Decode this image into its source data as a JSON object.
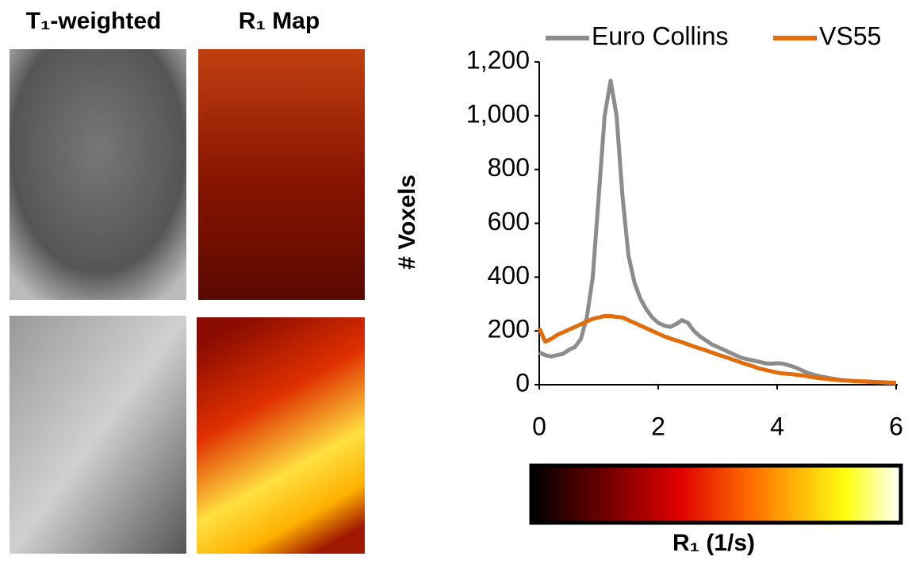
{
  "panels": {
    "t1_label": "T₁-weighted",
    "r1_label": "R₁ Map"
  },
  "chart_data": {
    "type": "line",
    "xlabel": "R₁ (1/s)",
    "ylabel": "# Voxels",
    "x": [
      0,
      0.1,
      0.2,
      0.3,
      0.4,
      0.5,
      0.6,
      0.7,
      0.8,
      0.9,
      1,
      1.1,
      1.2,
      1.3,
      1.4,
      1.5,
      1.6,
      1.7,
      1.8,
      1.9,
      2,
      2.1,
      2.2,
      2.3,
      2.4,
      2.5,
      2.6,
      2.7,
      2.8,
      2.9,
      3,
      3.1,
      3.2,
      3.3,
      3.4,
      3.5,
      3.6,
      3.7,
      3.8,
      3.9,
      4,
      4.1,
      4.2,
      4.3,
      4.4,
      4.5,
      4.6,
      4.7,
      4.8,
      4.9,
      5,
      5.1,
      5.2,
      5.3,
      5.4,
      5.5,
      5.6,
      5.7,
      5.8,
      5.9,
      6
    ],
    "series": [
      {
        "name": "Euro Collins",
        "color": "#8c8c8c",
        "values": [
          120,
          110,
          105,
          110,
          115,
          130,
          140,
          170,
          250,
          400,
          700,
          1000,
          1130,
          1000,
          700,
          480,
          380,
          320,
          280,
          250,
          230,
          220,
          215,
          225,
          240,
          230,
          200,
          180,
          165,
          150,
          140,
          130,
          120,
          110,
          100,
          95,
          90,
          85,
          80,
          78,
          80,
          78,
          72,
          65,
          55,
          45,
          38,
          32,
          28,
          24,
          20,
          17,
          15,
          13,
          12,
          11,
          10,
          9,
          8,
          7,
          6
        ]
      },
      {
        "name": "VS55",
        "color": "#e36c0a",
        "values": [
          210,
          160,
          170,
          185,
          195,
          205,
          215,
          225,
          235,
          245,
          250,
          255,
          255,
          252,
          250,
          240,
          230,
          220,
          210,
          200,
          190,
          180,
          172,
          165,
          158,
          150,
          142,
          135,
          128,
          120,
          112,
          105,
          98,
          90,
          82,
          75,
          68,
          60,
          55,
          50,
          45,
          42,
          40,
          38,
          35,
          32,
          28,
          25,
          22,
          20,
          18,
          16,
          15,
          14,
          13,
          12,
          11,
          10,
          9,
          8,
          7
        ]
      }
    ],
    "xlim": [
      0,
      6
    ],
    "xticks": [
      0,
      2,
      4,
      6
    ],
    "ylim": [
      0,
      1200
    ],
    "yticks": [
      0,
      200,
      400,
      600,
      800,
      {
        "value": 1000,
        "label": "1,000"
      },
      {
        "value": 1200,
        "label": "1,200"
      }
    ],
    "grid": false,
    "legend": "top"
  }
}
